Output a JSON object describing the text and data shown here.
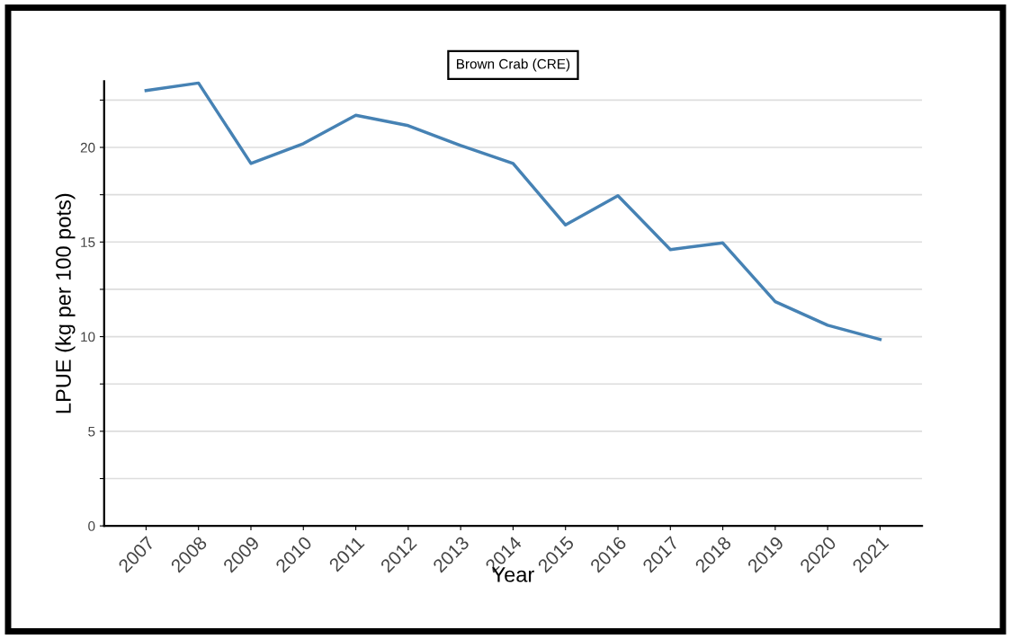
{
  "chart_data": {
    "type": "line",
    "title": "Brown Crab (CRE)",
    "xlabel": "Year",
    "ylabel": "LPUE (kg per 100 pots)",
    "categories": [
      "2007",
      "2008",
      "2009",
      "2010",
      "2011",
      "2012",
      "2013",
      "2014",
      "2015",
      "2016",
      "2017",
      "2018",
      "2019",
      "2020",
      "2021"
    ],
    "series": [
      {
        "color": "#4682b4",
        "values": [
          23.0,
          23.4,
          19.15,
          20.2,
          21.7,
          21.15,
          20.1,
          19.15,
          15.9,
          17.45,
          14.6,
          14.95,
          11.85,
          10.6,
          9.85
        ]
      }
    ],
    "ylim": [
      0,
      23.5
    ],
    "yticks": [
      0,
      {
        "value": 2.5,
        "label": null
      },
      5,
      {
        "value": 7.5,
        "label": null
      },
      10,
      {
        "value": 12.5,
        "label": null
      },
      15,
      {
        "value": 17.5,
        "label": null
      },
      20,
      {
        "value": 22.5,
        "label": null
      }
    ],
    "grid": "y",
    "marker": "none",
    "line_style": "solid"
  }
}
